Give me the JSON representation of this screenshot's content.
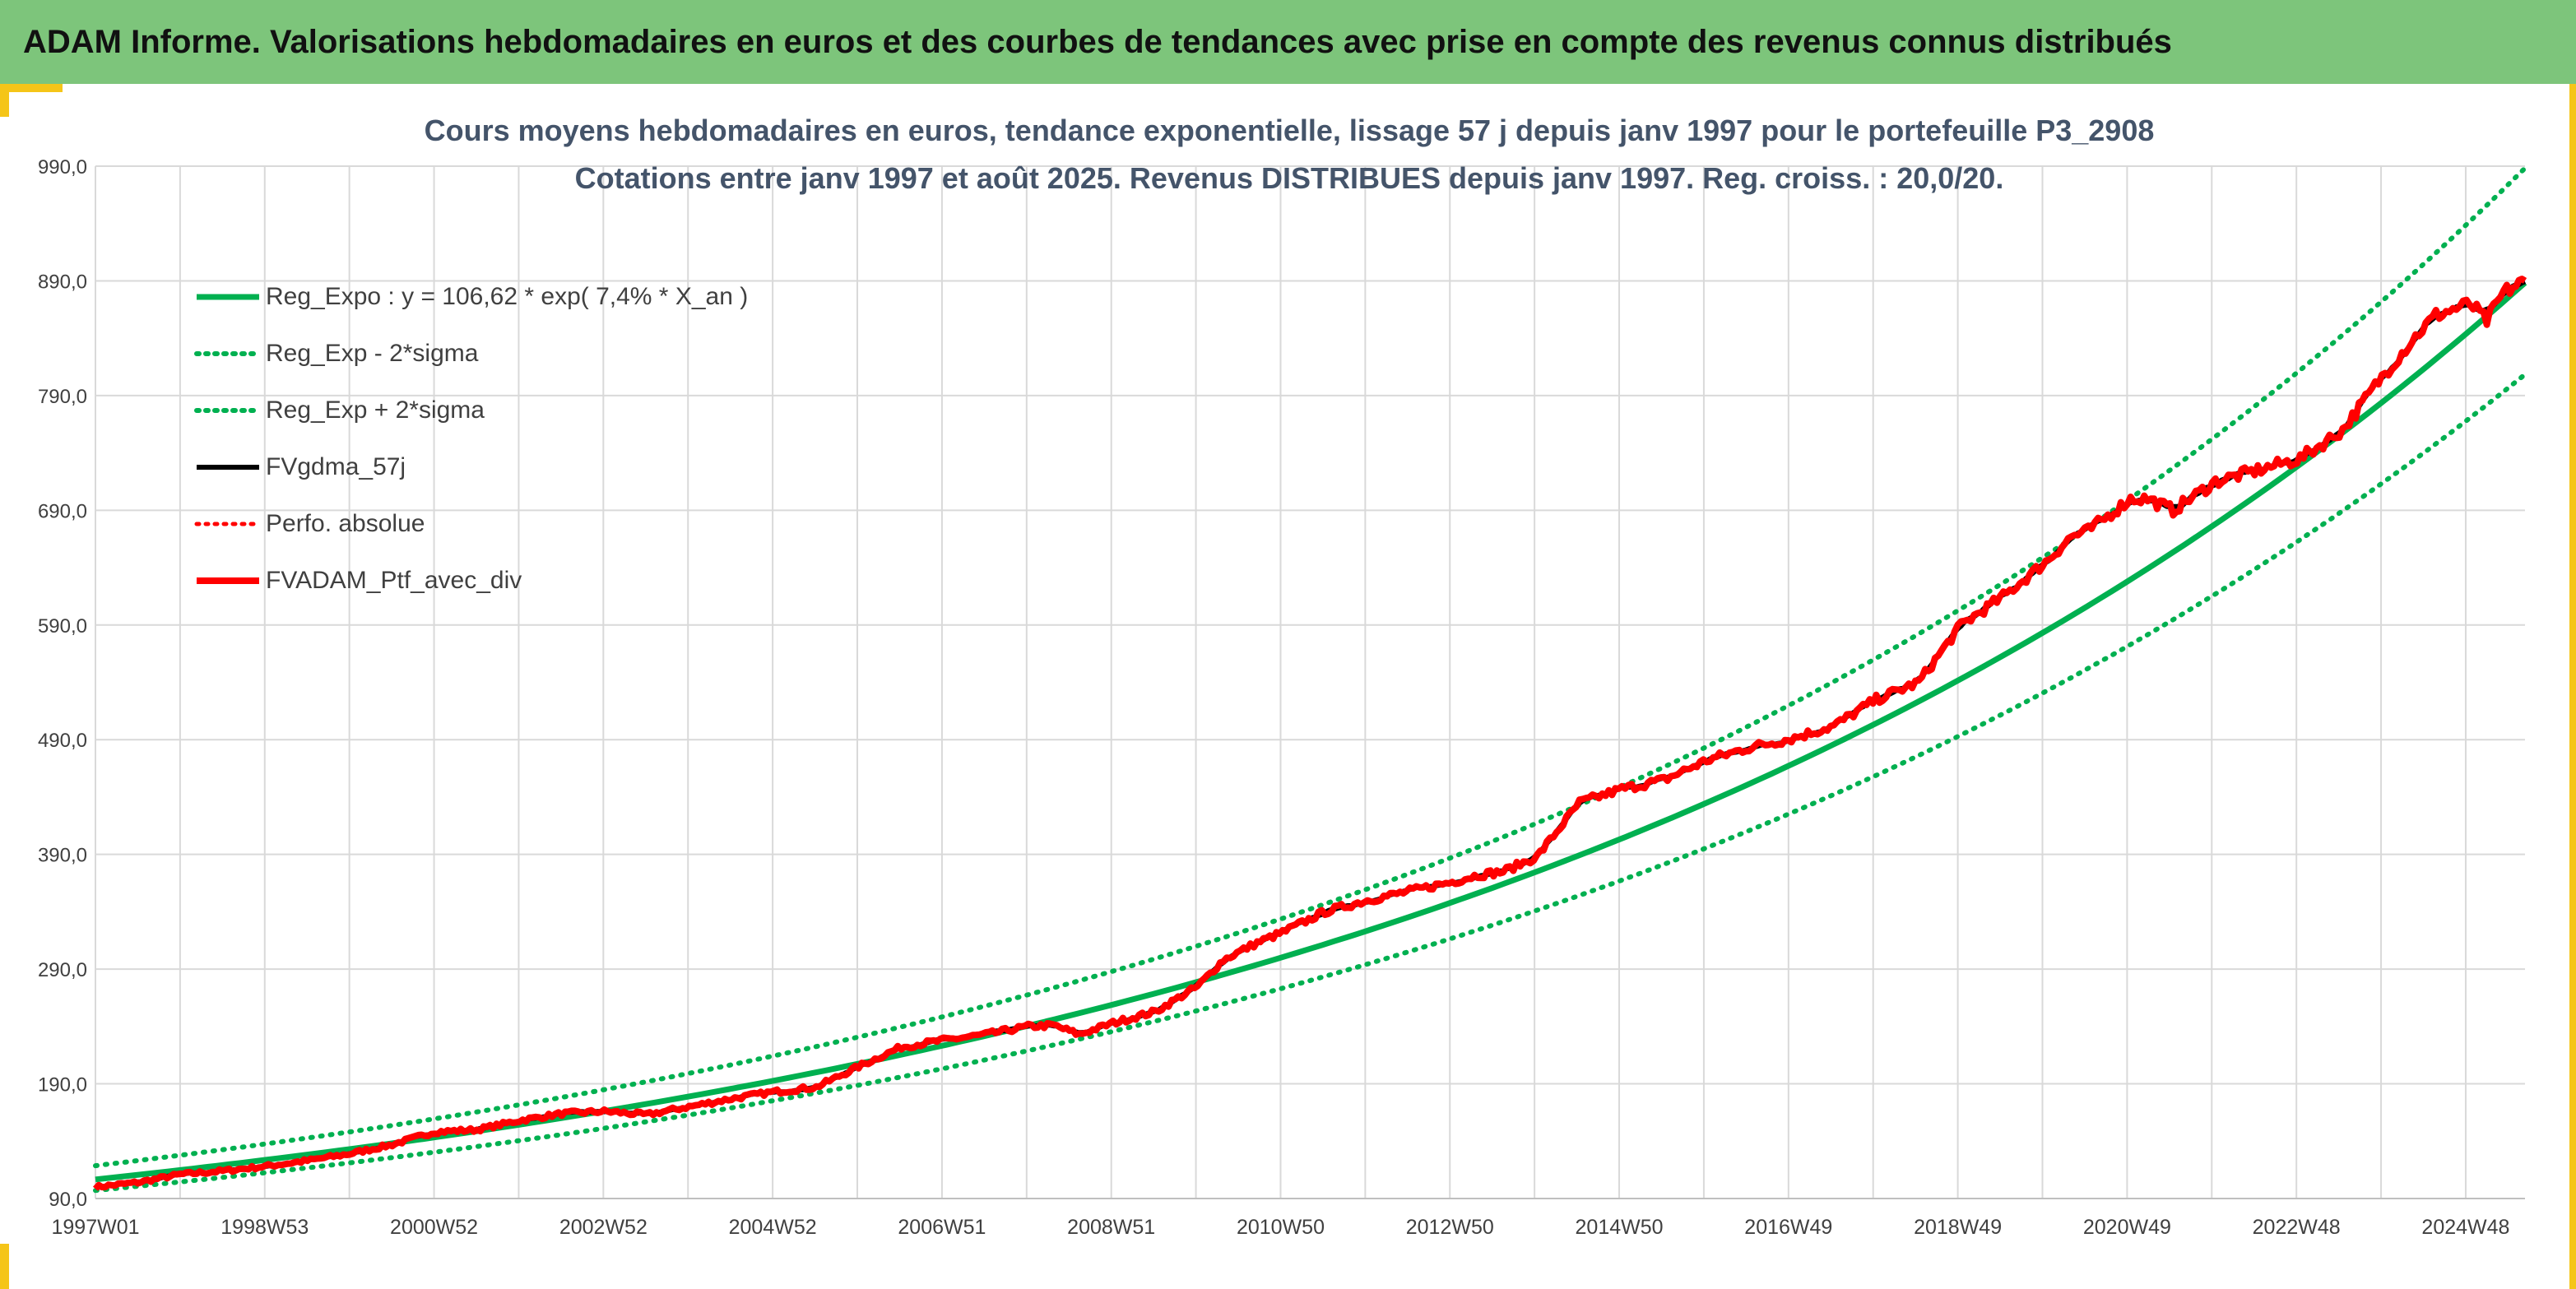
{
  "banner": {
    "title": "ADAM Informe. Valorisations hebdomadaires en euros et des courbes de tendances avec prise en compte des revenus connus distribués"
  },
  "colors": {
    "banner_bg": "#7dc57b",
    "frame_accent": "#f5c518",
    "green": "#00b050",
    "red": "#ff0000",
    "black": "#000000",
    "title_text": "#44546a",
    "grid": "#d9d9d9"
  },
  "chart_data": {
    "type": "line",
    "title_line1": "Cours moyens hebdomadaires en euros, tendance exponentielle, lissage 57 j depuis janv 1997 pour le portefeuille P3_2908",
    "title_line2": "Cotations entre janv 1997 et août 2025. Revenus DISTRIBUES depuis janv 1997. Reg. croiss. : 20,0/20.",
    "x_range": [
      "1997W01",
      "2025W34"
    ],
    "x_ticks": [
      "1997W01",
      "1998W53",
      "2000W52",
      "2002W52",
      "2004W52",
      "2006W51",
      "2008W51",
      "2010W50",
      "2012W50",
      "2014W50",
      "2016W49",
      "2018W49",
      "2020W49",
      "2022W48",
      "2024W48"
    ],
    "y_ticks": [
      "90,0",
      "190,0",
      "290,0",
      "390,0",
      "490,0",
      "590,0",
      "690,0",
      "790,0",
      "890,0",
      "990,0"
    ],
    "ylim": [
      90,
      990
    ],
    "grid": true,
    "legend_position": "top-left",
    "regression": {
      "a": 106.62,
      "rate": 0.074,
      "sigma_factor": 0.075
    },
    "legend": [
      {
        "label": "Reg_Expo : y = 106,62 * exp( 7,4% *  X_an )",
        "color": "#00b050",
        "style": "solid",
        "width": 7
      },
      {
        "label": "Reg_Exp - 2*sigma",
        "color": "#00b050",
        "style": "dotted",
        "width": 6
      },
      {
        "label": "Reg_Exp + 2*sigma",
        "color": "#00b050",
        "style": "dotted",
        "width": 6
      },
      {
        "label": "FVgdma_57j",
        "color": "#000000",
        "style": "solid",
        "width": 6
      },
      {
        "label": "Perfo. absolue",
        "color": "#ff0000",
        "style": "dotted",
        "width": 5
      },
      {
        "label": "FVADAM_Ptf_avec_div",
        "color": "#ff0000",
        "style": "solid",
        "width": 8
      }
    ],
    "series": [
      {
        "name": "FVADAM_Ptf_avec_div",
        "x_years": [
          0,
          0.5,
          1.0,
          1.5,
          2.0,
          2.5,
          3.0,
          3.5,
          4.0,
          4.5,
          5.0,
          5.5,
          6.0,
          6.5,
          7.0,
          7.5,
          8.0,
          8.5,
          9.0,
          9.5,
          10.0,
          10.5,
          11.0,
          11.3,
          11.6,
          12.0,
          12.5,
          13.0,
          13.3,
          13.7,
          14.0,
          14.5,
          15.0,
          15.5,
          16.0,
          16.3,
          16.6,
          17.0,
          17.5,
          18.0,
          18.5,
          19.0,
          19.5,
          20.0,
          20.5,
          21.0,
          21.5,
          22.0,
          22.5,
          23.0,
          23.3,
          23.5,
          24.0,
          24.2,
          24.5,
          25.0,
          25.5,
          26.0,
          26.5,
          27.0,
          27.4,
          27.6,
          28.0,
          28.2,
          28.4,
          28.65
        ],
        "values": [
          100,
          104,
          111,
          114,
          118,
          123,
          129,
          137,
          148,
          150,
          158,
          164,
          166,
          163,
          170,
          177,
          183,
          187,
          205,
          222,
          228,
          233,
          240,
          241,
          233,
          243,
          253,
          275,
          298,
          313,
          322,
          340,
          350,
          358,
          366,
          372,
          375,
          388,
          435,
          447,
          455,
          472,
          483,
          491,
          502,
          525,
          540,
          590,
          615,
          645,
          667,
          672,
          700,
          700,
          690,
          715,
          725,
          735,
          760,
          810,
          845,
          860,
          870,
          855,
          880,
          890
        ]
      }
    ]
  }
}
